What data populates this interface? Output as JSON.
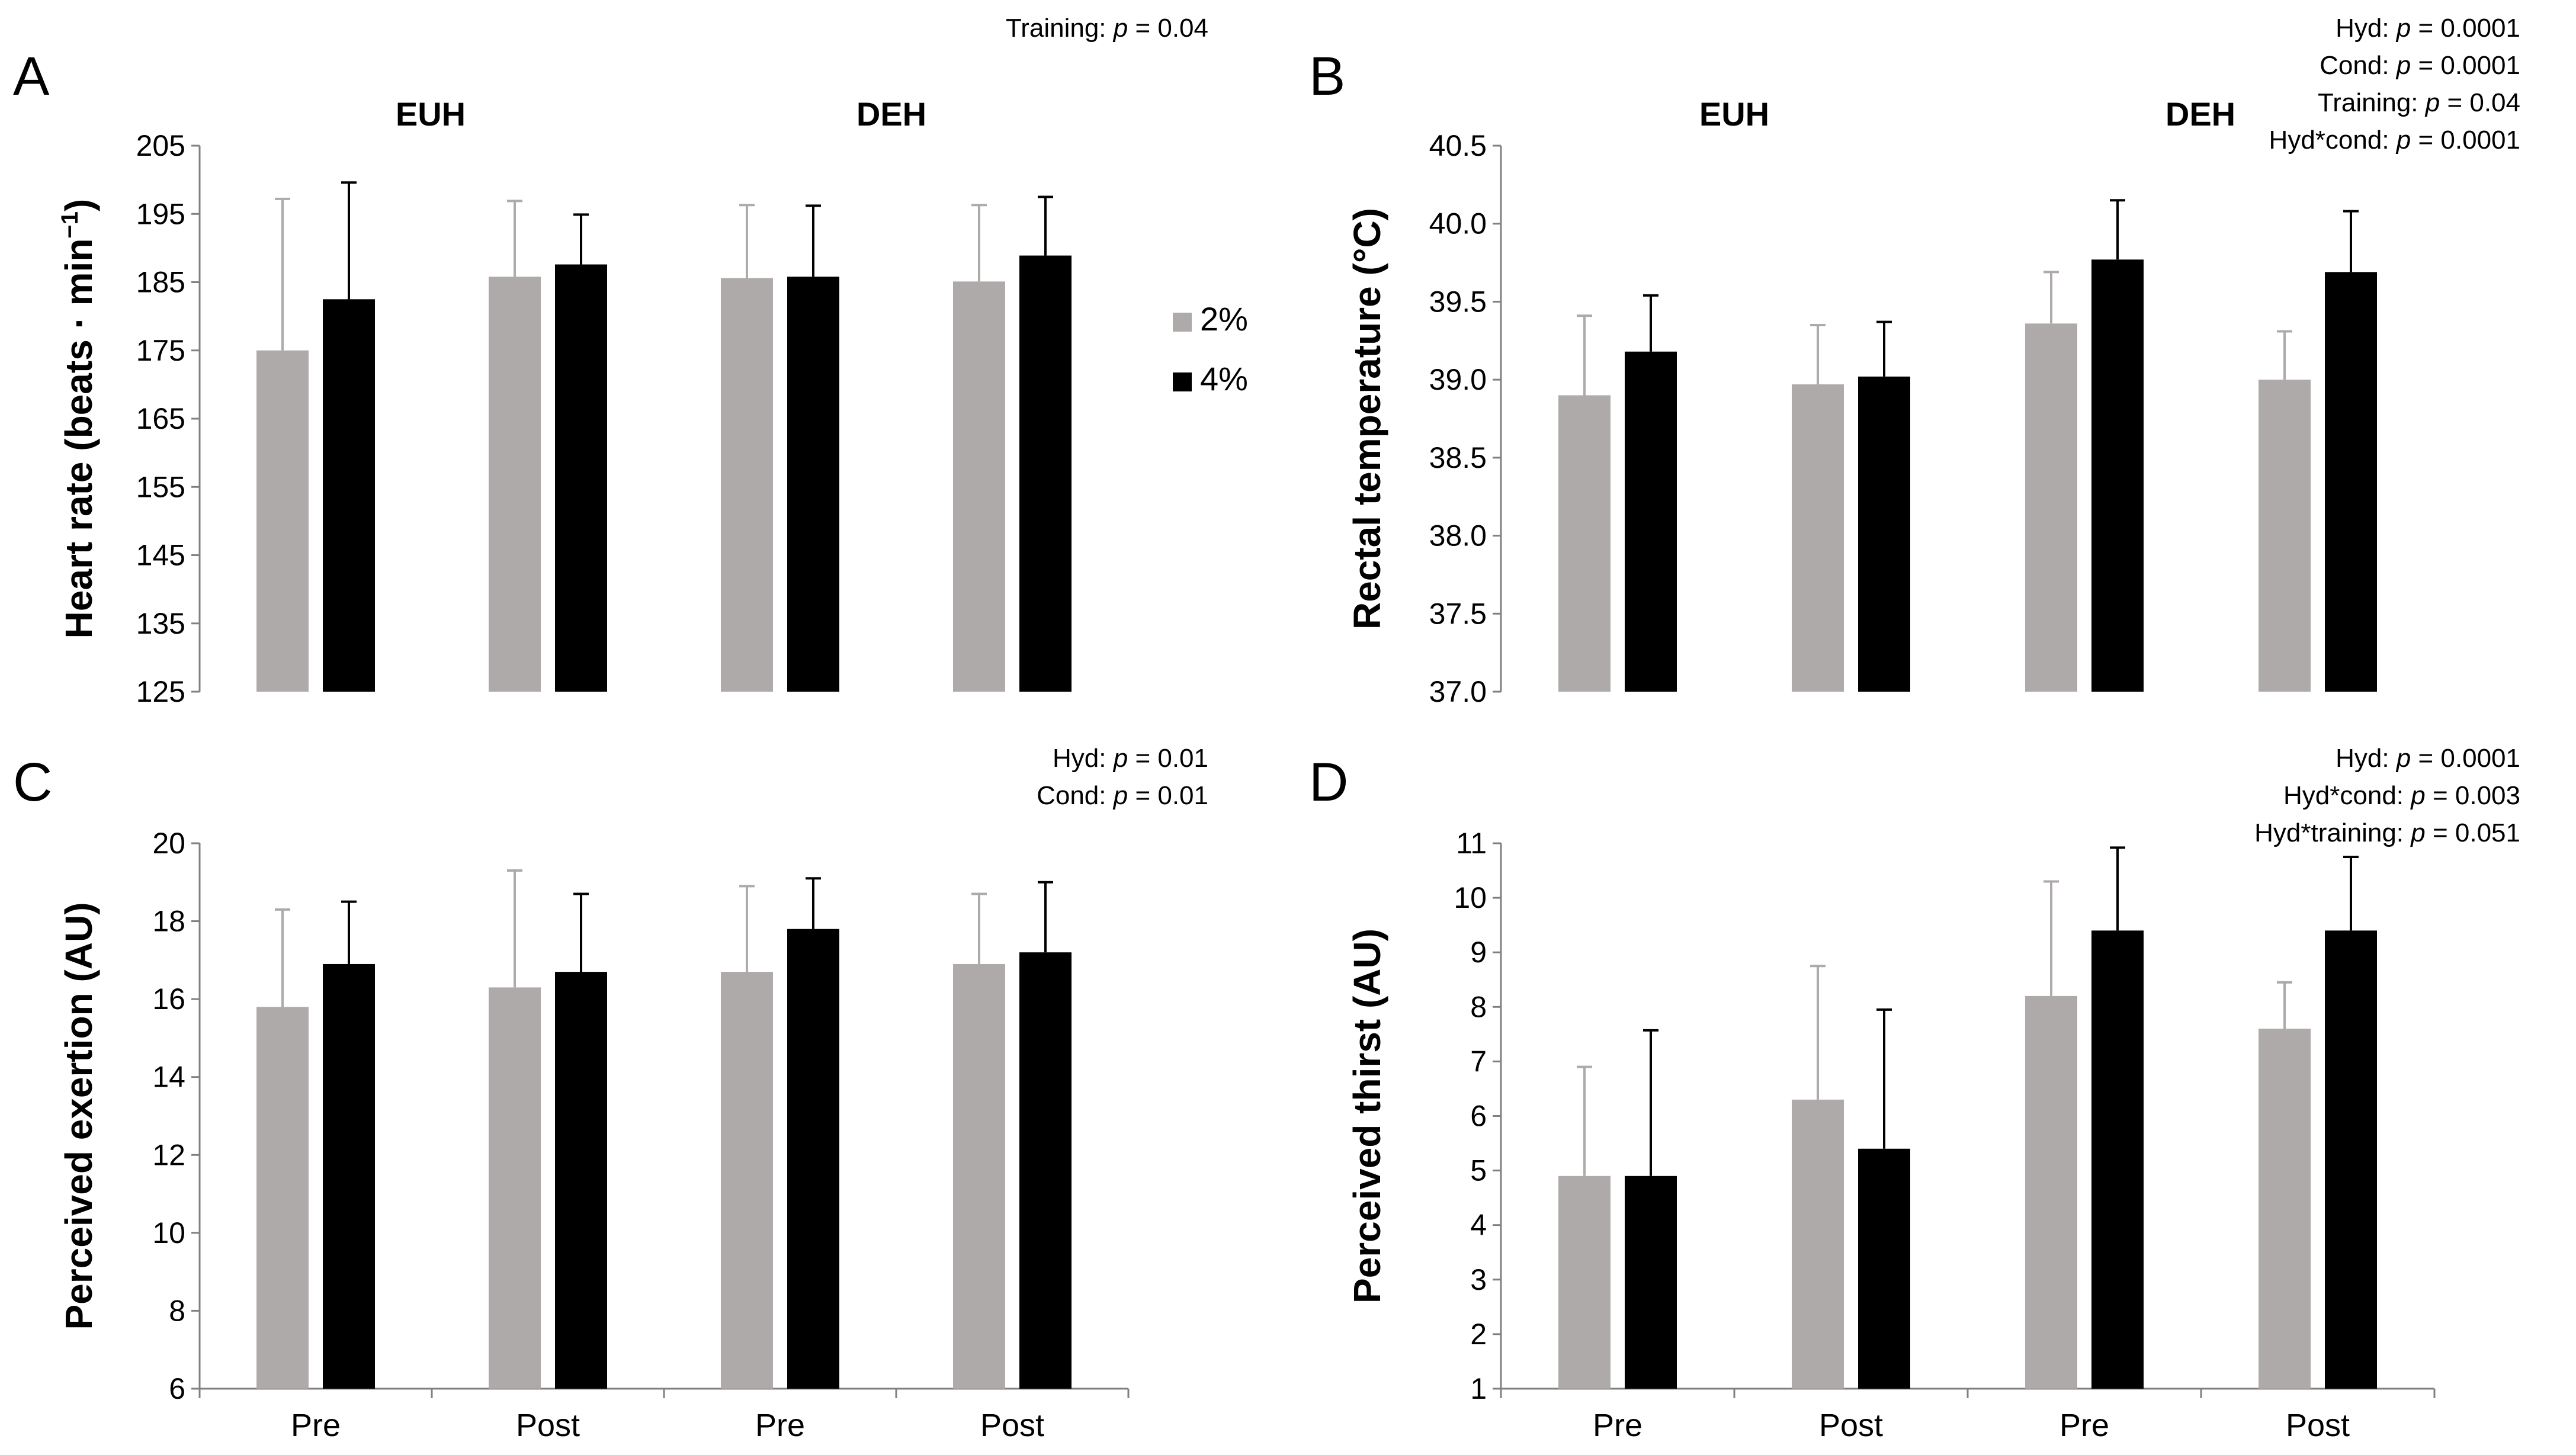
{
  "figure": {
    "colors": {
      "two_percent": "#aeaaaa",
      "four_percent": "#000000"
    },
    "legend": [
      {
        "label": "2%",
        "color": "#aeaaaa"
      },
      {
        "label": "4%",
        "color": "#000000"
      }
    ]
  },
  "chart_data": [
    {
      "panel": "A",
      "type": "bar",
      "group_labels": [
        "EUH",
        "DEH"
      ],
      "categories": [
        "Pre",
        "Post",
        "Pre",
        "Post"
      ],
      "ylabel_main": "Heart rate (beats · min",
      "ylabel_sup": "−1",
      "ylabel_close": ")",
      "ylim": [
        125,
        205
      ],
      "yticks": [
        "125",
        "135",
        "145",
        "155",
        "165",
        "175",
        "185",
        "195",
        "205"
      ],
      "show_xtick_labels": false,
      "series": [
        {
          "name": "2%",
          "values": [
            175,
            185.8,
            185.6,
            185.1
          ],
          "err": [
            22.2,
            11.1,
            10.7,
            11.2
          ]
        },
        {
          "name": "4%",
          "values": [
            182.5,
            187.6,
            185.8,
            188.9
          ],
          "err": [
            17.1,
            7.3,
            10.4,
            8.6
          ]
        }
      ],
      "stats": [
        {
          "label": "Training: ",
          "p": "p",
          "value": " = 0.04"
        }
      ]
    },
    {
      "panel": "B",
      "type": "bar",
      "group_labels": [
        "EUH",
        "DEH"
      ],
      "categories": [
        "Pre",
        "Post",
        "Pre",
        "Post"
      ],
      "ylabel_main": "Rectal temperature (°C)",
      "ylabel_sup": "",
      "ylabel_close": "",
      "ylim": [
        37.0,
        40.5
      ],
      "yticks": [
        "37.0",
        "37.5",
        "38.0",
        "38.5",
        "39.0",
        "39.5",
        "40.0",
        "40.5"
      ],
      "show_xtick_labels": false,
      "series": [
        {
          "name": "2%",
          "values": [
            38.9,
            38.97,
            39.36,
            39.0
          ],
          "err": [
            0.51,
            0.38,
            0.33,
            0.31
          ]
        },
        {
          "name": "4%",
          "values": [
            39.18,
            39.02,
            39.77,
            39.69
          ],
          "err": [
            0.36,
            0.35,
            0.38,
            0.39
          ]
        }
      ],
      "stats": [
        {
          "label": "Hyd: ",
          "p": "p",
          "value": " = 0.0001"
        },
        {
          "label": "Cond: ",
          "p": "p",
          "value": " = 0.0001"
        },
        {
          "label": "Training: ",
          "p": "p",
          "value": " = 0.04"
        },
        {
          "label": "Hyd*cond: ",
          "p": "p",
          "value": " = 0.0001"
        }
      ]
    },
    {
      "panel": "C",
      "type": "bar",
      "group_labels": [],
      "categories": [
        "Pre",
        "Post",
        "Pre",
        "Post"
      ],
      "ylabel_main": "Perceived exertion (AU)",
      "ylabel_sup": "",
      "ylabel_close": "",
      "ylim": [
        6,
        20
      ],
      "yticks": [
        "6",
        "8",
        "10",
        "12",
        "14",
        "16",
        "18",
        "20"
      ],
      "show_xtick_labels": true,
      "series": [
        {
          "name": "2%",
          "values": [
            15.8,
            16.3,
            16.7,
            16.9
          ],
          "err": [
            2.5,
            3.0,
            2.2,
            1.8
          ]
        },
        {
          "name": "4%",
          "values": [
            16.9,
            16.7,
            17.8,
            17.2
          ],
          "err": [
            1.6,
            2.0,
            1.3,
            1.8
          ]
        }
      ],
      "stats": [
        {
          "label": "Hyd: ",
          "p": "p",
          "value": " = 0.01"
        },
        {
          "label": "Cond: ",
          "p": "p",
          "value": " = 0.01"
        }
      ]
    },
    {
      "panel": "D",
      "type": "bar",
      "group_labels": [],
      "categories": [
        "Pre",
        "Post",
        "Pre",
        "Post"
      ],
      "ylabel_main": "Perceived thirst (AU)",
      "ylabel_sup": "",
      "ylabel_close": "",
      "ylim": [
        1,
        11
      ],
      "yticks": [
        "1",
        "2",
        "3",
        "4",
        "5",
        "6",
        "7",
        "8",
        "9",
        "10",
        "11"
      ],
      "show_xtick_labels": true,
      "series": [
        {
          "name": "2%",
          "values": [
            4.9,
            6.3,
            8.2,
            7.6
          ],
          "err": [
            2.0,
            2.45,
            2.1,
            0.85
          ]
        },
        {
          "name": "4%",
          "values": [
            4.9,
            5.4,
            9.4,
            9.4
          ],
          "err": [
            2.67,
            2.55,
            1.52,
            1.35
          ]
        }
      ],
      "stats": [
        {
          "label": "Hyd: ",
          "p": "p",
          "value": " = 0.0001"
        },
        {
          "label": "Hyd*cond: ",
          "p": "p",
          "value": " = 0.003"
        },
        {
          "label": "Hyd*training: ",
          "p": "p",
          "value": " = 0.051"
        }
      ]
    }
  ]
}
